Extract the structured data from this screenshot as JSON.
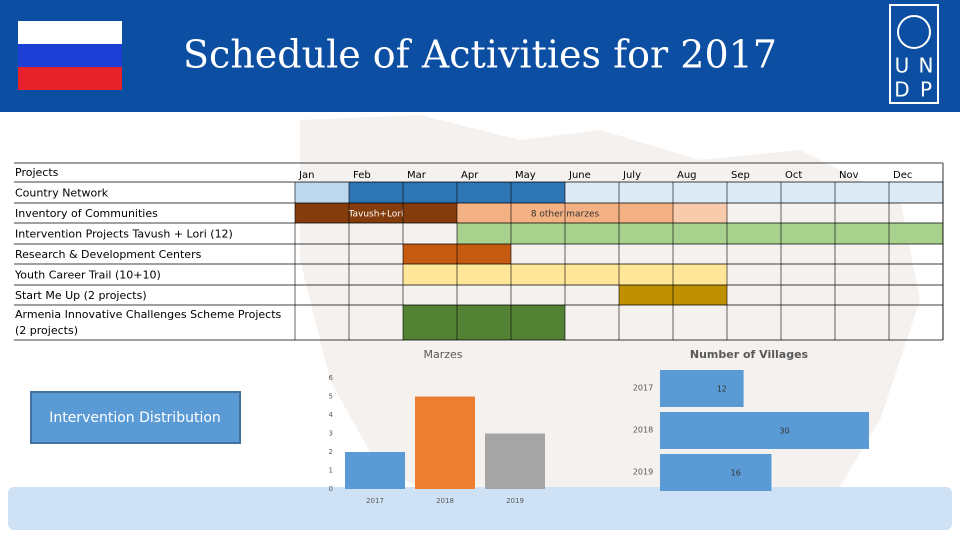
{
  "header": {
    "title": "Schedule of Activities for 2017",
    "logo": [
      "U",
      "N",
      "D",
      "P"
    ]
  },
  "table": {
    "corner": "Projects",
    "months": [
      "Jan",
      "Feb",
      "Mar",
      "Apr",
      "May",
      "June",
      "July",
      "Aug",
      "Sep",
      "Oct",
      "Nov",
      "Dec"
    ],
    "rows": [
      {
        "label": "Country Network",
        "segments": [
          {
            "span": 1,
            "color": "#bdd7ee"
          },
          {
            "span": 4,
            "color": "#2e75b6"
          },
          {
            "span": 7,
            "color": "#ddebf7"
          }
        ]
      },
      {
        "label": "Inventory of Communities",
        "segments": [
          {
            "span": 3,
            "color": "#843c0c",
            "label": "Tavush+Lori"
          },
          {
            "span": 4,
            "color": "#f4b183",
            "label": "8 other marzes"
          },
          {
            "span": 1,
            "color": "#f8cbad"
          },
          {
            "span": 4,
            "color": null
          }
        ]
      },
      {
        "label": "Intervention Projects Tavush + Lori (12)",
        "segments": [
          {
            "span": 3,
            "color": null
          },
          {
            "span": 9,
            "color": "#a9d18e"
          }
        ]
      },
      {
        "label": "Research & Development Centers",
        "segments": [
          {
            "span": 2,
            "color": null
          },
          {
            "span": 2,
            "color": "#c55a11"
          },
          {
            "span": 8,
            "color": null
          }
        ]
      },
      {
        "label": "Youth Career Trail (10+10)",
        "segments": [
          {
            "span": 2,
            "color": null
          },
          {
            "span": 6,
            "color": "#ffe699"
          },
          {
            "span": 4,
            "color": null
          }
        ]
      },
      {
        "label": "Start Me Up (2 projects)",
        "segments": [
          {
            "span": 6,
            "color": null
          },
          {
            "span": 2,
            "color": "#bf9000"
          },
          {
            "span": 4,
            "color": null
          }
        ]
      },
      {
        "label": "Armenia Innovative Challenges Scheme Projects (2 projects)",
        "segments": [
          {
            "span": 2,
            "color": null
          },
          {
            "span": 3,
            "color": "#548235"
          },
          {
            "span": 7,
            "color": null
          }
        ]
      }
    ]
  },
  "button": {
    "label": "Intervention Distribution"
  },
  "chart_data": [
    {
      "type": "bar",
      "title": "Marzes",
      "categories": [
        "2017",
        "2018",
        "2019"
      ],
      "values": [
        2,
        5,
        3
      ],
      "colors": [
        "#5b9bd5",
        "#ed7d31",
        "#a5a5a5"
      ],
      "ylim": [
        0,
        6
      ],
      "yticks": [
        0,
        1,
        2,
        3,
        4,
        5,
        6
      ]
    },
    {
      "type": "hbar",
      "title": "Number of Villages",
      "categories": [
        "2017",
        "2018",
        "2019"
      ],
      "values": [
        12,
        30,
        16
      ],
      "color": "#5b9bd5",
      "xlim": [
        0,
        30
      ]
    }
  ]
}
